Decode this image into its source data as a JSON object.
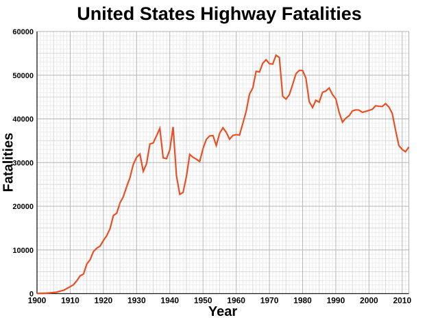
{
  "page": {
    "background": "#ffffff"
  },
  "chart_data": {
    "type": "line",
    "title": "United States Highway Fatalities",
    "xlabel": "Year",
    "ylabel": "Fatalities",
    "xlim": [
      1900,
      2012
    ],
    "ylim": [
      0,
      60000
    ],
    "x_major_ticks": [
      1900,
      1910,
      1920,
      1930,
      1940,
      1950,
      1960,
      1970,
      1980,
      1990,
      2000,
      2010
    ],
    "y_major_ticks": [
      0,
      10000,
      20000,
      30000,
      40000,
      50000,
      60000
    ],
    "grid": {
      "x_minor_step": 1,
      "x_medium_step": 5,
      "x_major_step": 10,
      "y_minor_step": 1000,
      "y_medium_step": 5000,
      "y_major_step": 10000
    },
    "legend": "none",
    "colors": {
      "line": "#ea4f23",
      "grid_minor": "#ececec",
      "grid_medium": "#d8d8d8",
      "grid_major": "#b4b4b4",
      "axis": "#1a1a1a",
      "text": "#000000"
    },
    "series": [
      {
        "name": "Fatalities",
        "x_start": 1900,
        "x_step": 1,
        "values": [
          36,
          54,
          79,
          117,
          172,
          252,
          338,
          581,
          751,
          1174,
          1599,
          2043,
          2968,
          4079,
          4468,
          6779,
          7766,
          9630,
          10390,
          10896,
          12155,
          13253,
          14859,
          17870,
          18400,
          20771,
          22194,
          24470,
          26557,
          29592,
          31204,
          31963,
          27979,
          29746,
          34240,
          34494,
          36126,
          37819,
          31083,
          30895,
          32914,
          38142,
          27007,
          22727,
          23165,
          26785,
          31874,
          31193,
          30775,
          30246,
          33186,
          35309,
          36088,
          36190,
          33890,
          36688,
          37965,
          36932,
          35331,
          36223,
          36399,
          36285,
          38980,
          41723,
          45645,
          47089,
          50894,
          50724,
          52725,
          53543,
          52627,
          52542,
          54589,
          54052,
          45196,
          44525,
          45523,
          47878,
          50331,
          51093,
          51091,
          49301,
          43945,
          42589,
          44257,
          43825,
          46087,
          46390,
          47087,
          45582,
          44599,
          41508,
          39250,
          40150,
          40716,
          41817,
          42065,
          42013,
          41501,
          41717,
          41945,
          42196,
          43005,
          42884,
          42836,
          43510,
          42708,
          41259,
          37423,
          33883,
          32999,
          32479,
          33561
        ]
      }
    ]
  }
}
